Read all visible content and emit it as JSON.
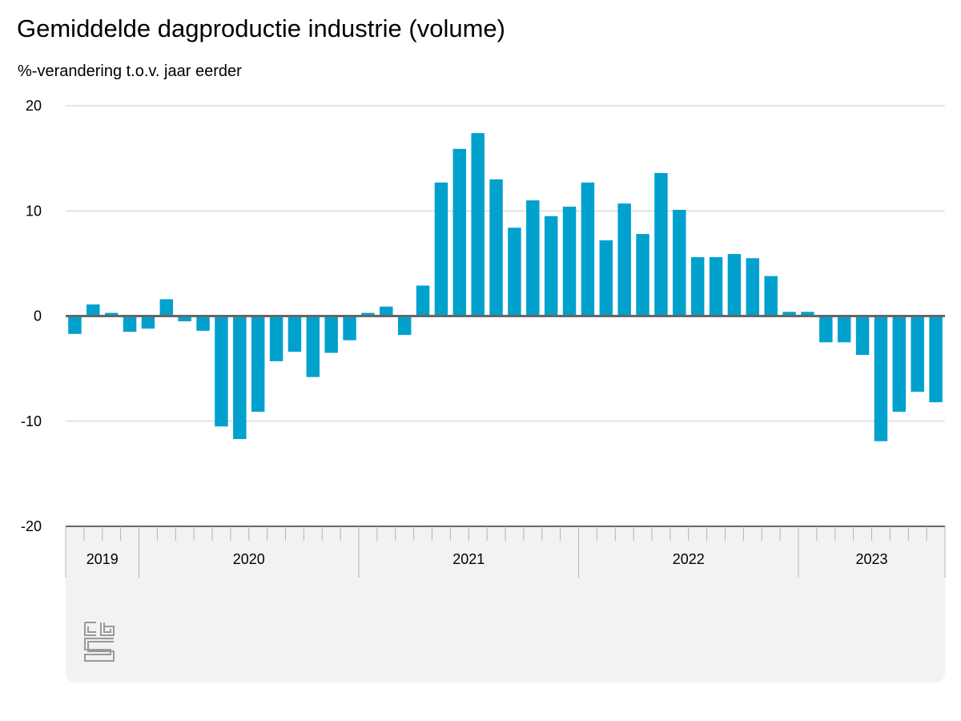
{
  "title": "Gemiddelde dagproductie industrie (volume)",
  "subtitle": "%-verandering t.o.v. jaar eerder",
  "colors": {
    "bar": "#00a1cd",
    "grid": "#cccccc",
    "zero_line": "#666666",
    "axis_band": "#f2f2f2",
    "tick": "#b3b3b3",
    "logo": "#999999"
  },
  "logo": "cbs",
  "chart_data": {
    "type": "bar",
    "ylabel": "%-verandering t.o.v. jaar eerder",
    "ylim": [
      -20,
      20
    ],
    "yticks": [
      20,
      10,
      0,
      -10,
      -20
    ],
    "grid": true,
    "year_labels": [
      "2019",
      "2020",
      "2021",
      "2022",
      "2023"
    ],
    "categories": [
      "2019-09",
      "2019-10",
      "2019-11",
      "2019-12",
      "2020-01",
      "2020-02",
      "2020-03",
      "2020-04",
      "2020-05",
      "2020-06",
      "2020-07",
      "2020-08",
      "2020-09",
      "2020-10",
      "2020-11",
      "2020-12",
      "2021-01",
      "2021-02",
      "2021-03",
      "2021-04",
      "2021-05",
      "2021-06",
      "2021-07",
      "2021-08",
      "2021-09",
      "2021-10",
      "2021-11",
      "2021-12",
      "2022-01",
      "2022-02",
      "2022-03",
      "2022-04",
      "2022-05",
      "2022-06",
      "2022-07",
      "2022-08",
      "2022-09",
      "2022-10",
      "2022-11",
      "2022-12",
      "2023-01",
      "2023-02",
      "2023-03",
      "2023-04",
      "2023-05",
      "2023-06",
      "2023-07",
      "2023-08"
    ],
    "values": [
      -1.7,
      1.1,
      0.3,
      -1.5,
      -1.2,
      1.6,
      -0.5,
      -1.4,
      -10.5,
      -11.7,
      -9.1,
      -4.3,
      -3.4,
      -5.8,
      -3.5,
      -2.3,
      0.3,
      0.9,
      -1.8,
      2.9,
      12.7,
      15.9,
      17.4,
      13.0,
      8.4,
      11.0,
      9.5,
      10.4,
      12.7,
      7.2,
      10.7,
      7.8,
      13.6,
      10.1,
      5.6,
      5.6,
      5.9,
      5.5,
      3.8,
      0.4,
      0.4,
      -2.5,
      -2.5,
      -3.7,
      -11.9,
      -9.1,
      -7.2,
      -8.2
    ]
  }
}
